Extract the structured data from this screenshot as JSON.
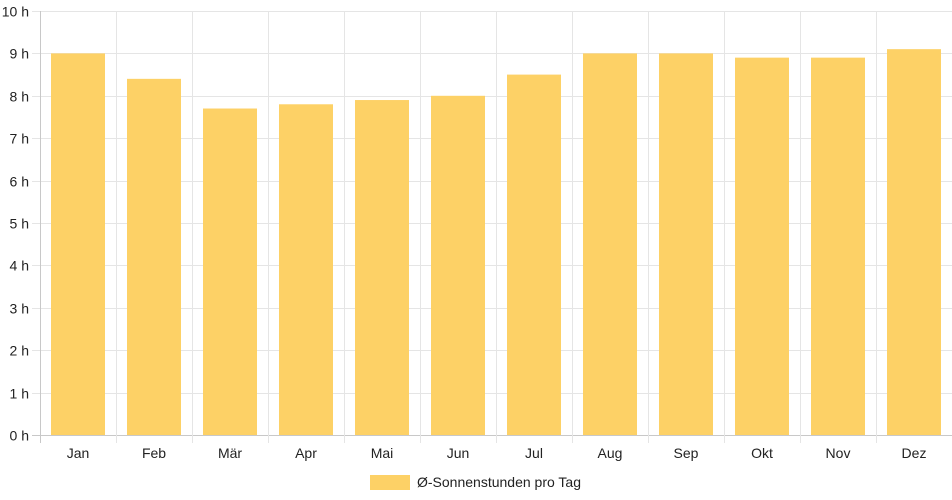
{
  "chart_data": {
    "type": "bar",
    "categories": [
      "Jan",
      "Feb",
      "Mär",
      "Apr",
      "Mai",
      "Jun",
      "Jul",
      "Aug",
      "Sep",
      "Okt",
      "Nov",
      "Dez"
    ],
    "series": [
      {
        "name": "Ø-Sonnenstunden pro Tag",
        "values": [
          9.0,
          8.4,
          7.7,
          7.8,
          7.9,
          8.0,
          8.5,
          9.0,
          9.0,
          8.9,
          8.9,
          9.1
        ]
      }
    ],
    "ylim": [
      0,
      10
    ],
    "yticks": [
      0,
      1,
      2,
      3,
      4,
      5,
      6,
      7,
      8,
      9,
      10
    ],
    "ytick_suffix": " h",
    "grid": true,
    "legend_position": "bottom",
    "colors": {
      "bar": "#fdd166",
      "grid": "#e5e5e5",
      "axis": "#c8c8c8",
      "text": "#222222"
    }
  }
}
